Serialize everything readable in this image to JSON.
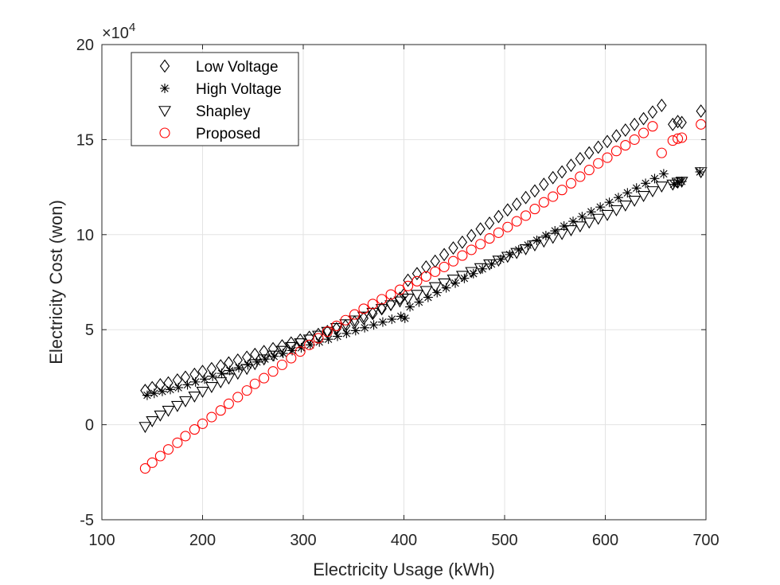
{
  "chart_data": {
    "type": "scatter",
    "title": "",
    "xlabel": "Electricity Usage (kWh)",
    "ylabel": "Electricity Cost (won)",
    "exponent_label": "×10",
    "exponent_power": "4",
    "xlim": [
      100,
      700
    ],
    "ylim": [
      -5,
      20
    ],
    "y_scale_factor": 10000,
    "xticks": [
      100,
      200,
      300,
      400,
      500,
      600,
      700
    ],
    "yticks": [
      -5,
      0,
      5,
      10,
      15,
      20
    ],
    "grid": true,
    "legend_placement": "top-left",
    "series": [
      {
        "name": "Low Voltage",
        "marker": "diamond",
        "color": "#000000",
        "x": [
          143,
          150,
          158,
          166,
          175,
          183,
          192,
          200,
          209,
          218,
          226,
          235,
          244,
          252,
          261,
          270,
          279,
          288,
          297,
          306,
          315,
          324,
          333,
          342,
          351,
          360,
          369,
          378,
          387,
          396,
          400,
          404,
          413,
          422,
          431,
          440,
          449,
          458,
          467,
          476,
          485,
          494,
          503,
          512,
          521,
          530,
          539,
          548,
          557,
          566,
          575,
          584,
          593,
          602,
          611,
          620,
          629,
          638,
          647,
          656,
          667,
          672,
          676,
          695
        ],
        "y": [
          1.8,
          1.95,
          2.1,
          2.2,
          2.35,
          2.5,
          2.65,
          2.8,
          2.95,
          3.1,
          3.25,
          3.4,
          3.55,
          3.7,
          3.85,
          4.0,
          4.15,
          4.3,
          4.45,
          4.6,
          4.75,
          4.9,
          5.05,
          5.2,
          5.4,
          5.6,
          5.85,
          6.1,
          6.35,
          6.65,
          6.85,
          7.6,
          7.95,
          8.3,
          8.6,
          8.95,
          9.3,
          9.6,
          9.95,
          10.3,
          10.6,
          10.95,
          11.3,
          11.6,
          11.95,
          12.3,
          12.65,
          13.0,
          13.3,
          13.65,
          14.0,
          14.3,
          14.6,
          14.9,
          15.2,
          15.5,
          15.8,
          16.1,
          16.45,
          16.8,
          15.8,
          15.95,
          15.9,
          16.5
        ]
      },
      {
        "name": "High Voltage",
        "marker": "asterisk",
        "color": "#000000",
        "x": [
          145,
          152,
          160,
          168,
          176,
          185,
          193,
          202,
          210,
          219,
          227,
          236,
          245,
          254,
          262,
          271,
          280,
          289,
          298,
          307,
          316,
          325,
          334,
          343,
          352,
          361,
          370,
          379,
          388,
          397,
          401,
          406,
          415,
          424,
          433,
          442,
          451,
          460,
          469,
          478,
          487,
          496,
          505,
          514,
          523,
          532,
          541,
          550,
          559,
          568,
          577,
          586,
          595,
          604,
          613,
          622,
          631,
          640,
          649,
          658,
          668,
          672,
          676,
          694
        ],
        "y": [
          1.55,
          1.65,
          1.75,
          1.85,
          1.95,
          2.1,
          2.25,
          2.4,
          2.55,
          2.7,
          2.85,
          3.0,
          3.15,
          3.3,
          3.45,
          3.6,
          3.75,
          3.9,
          4.05,
          4.2,
          4.35,
          4.5,
          4.65,
          4.8,
          4.95,
          5.1,
          5.25,
          5.4,
          5.55,
          5.7,
          5.6,
          6.2,
          6.45,
          6.7,
          6.95,
          7.2,
          7.45,
          7.7,
          7.95,
          8.2,
          8.45,
          8.7,
          8.95,
          9.2,
          9.45,
          9.7,
          9.95,
          10.2,
          10.45,
          10.7,
          10.95,
          11.2,
          11.45,
          11.7,
          11.95,
          12.2,
          12.45,
          12.7,
          12.95,
          13.2,
          12.65,
          12.75,
          12.8,
          13.3
        ]
      },
      {
        "name": "Shapley",
        "marker": "triangle-down",
        "color": "#000000",
        "x": [
          143,
          150,
          158,
          166,
          175,
          183,
          192,
          200,
          209,
          218,
          226,
          235,
          244,
          252,
          261,
          270,
          279,
          288,
          297,
          306,
          315,
          324,
          333,
          342,
          351,
          360,
          369,
          378,
          387,
          396,
          404,
          413,
          422,
          431,
          440,
          449,
          458,
          467,
          476,
          485,
          494,
          503,
          512,
          521,
          530,
          539,
          548,
          557,
          566,
          575,
          584,
          593,
          602,
          611,
          620,
          629,
          638,
          647,
          656,
          667,
          672,
          676,
          695
        ],
        "y": [
          -0.1,
          0.2,
          0.5,
          0.75,
          1.0,
          1.25,
          1.5,
          1.75,
          2.0,
          2.25,
          2.45,
          2.7,
          2.95,
          3.2,
          3.45,
          3.65,
          3.9,
          4.1,
          4.3,
          4.5,
          4.7,
          4.9,
          5.1,
          5.3,
          5.5,
          5.7,
          5.9,
          6.1,
          6.3,
          6.5,
          6.65,
          6.85,
          7.05,
          7.25,
          7.45,
          7.65,
          7.85,
          8.05,
          8.25,
          8.45,
          8.65,
          8.85,
          9.05,
          9.25,
          9.45,
          9.65,
          9.85,
          10.05,
          10.25,
          10.45,
          10.65,
          10.85,
          11.05,
          11.3,
          11.55,
          11.8,
          12.05,
          12.3,
          12.55,
          12.65,
          12.75,
          12.8,
          13.3
        ]
      },
      {
        "name": "Proposed",
        "marker": "circle",
        "color": "#ff0000",
        "x": [
          143,
          150,
          158,
          166,
          175,
          183,
          192,
          200,
          209,
          218,
          226,
          235,
          244,
          252,
          261,
          270,
          279,
          288,
          297,
          306,
          315,
          324,
          333,
          342,
          351,
          360,
          369,
          378,
          387,
          396,
          404,
          413,
          422,
          431,
          440,
          449,
          458,
          467,
          476,
          485,
          494,
          503,
          512,
          521,
          530,
          539,
          548,
          557,
          566,
          575,
          584,
          593,
          602,
          611,
          620,
          629,
          638,
          647,
          656,
          667,
          672,
          676,
          695
        ],
        "y": [
          -2.3,
          -2.0,
          -1.65,
          -1.3,
          -0.95,
          -0.6,
          -0.25,
          0.05,
          0.4,
          0.75,
          1.1,
          1.45,
          1.8,
          2.15,
          2.45,
          2.8,
          3.15,
          3.5,
          3.85,
          4.2,
          4.55,
          4.9,
          5.2,
          5.5,
          5.8,
          6.1,
          6.35,
          6.6,
          6.85,
          7.1,
          7.3,
          7.55,
          7.8,
          8.05,
          8.3,
          8.6,
          8.9,
          9.2,
          9.5,
          9.8,
          10.1,
          10.4,
          10.7,
          11.0,
          11.35,
          11.7,
          12.0,
          12.35,
          12.7,
          13.05,
          13.4,
          13.75,
          14.05,
          14.4,
          14.7,
          15.0,
          15.35,
          15.7,
          14.3,
          14.95,
          15.05,
          15.1,
          15.8
        ]
      }
    ]
  }
}
